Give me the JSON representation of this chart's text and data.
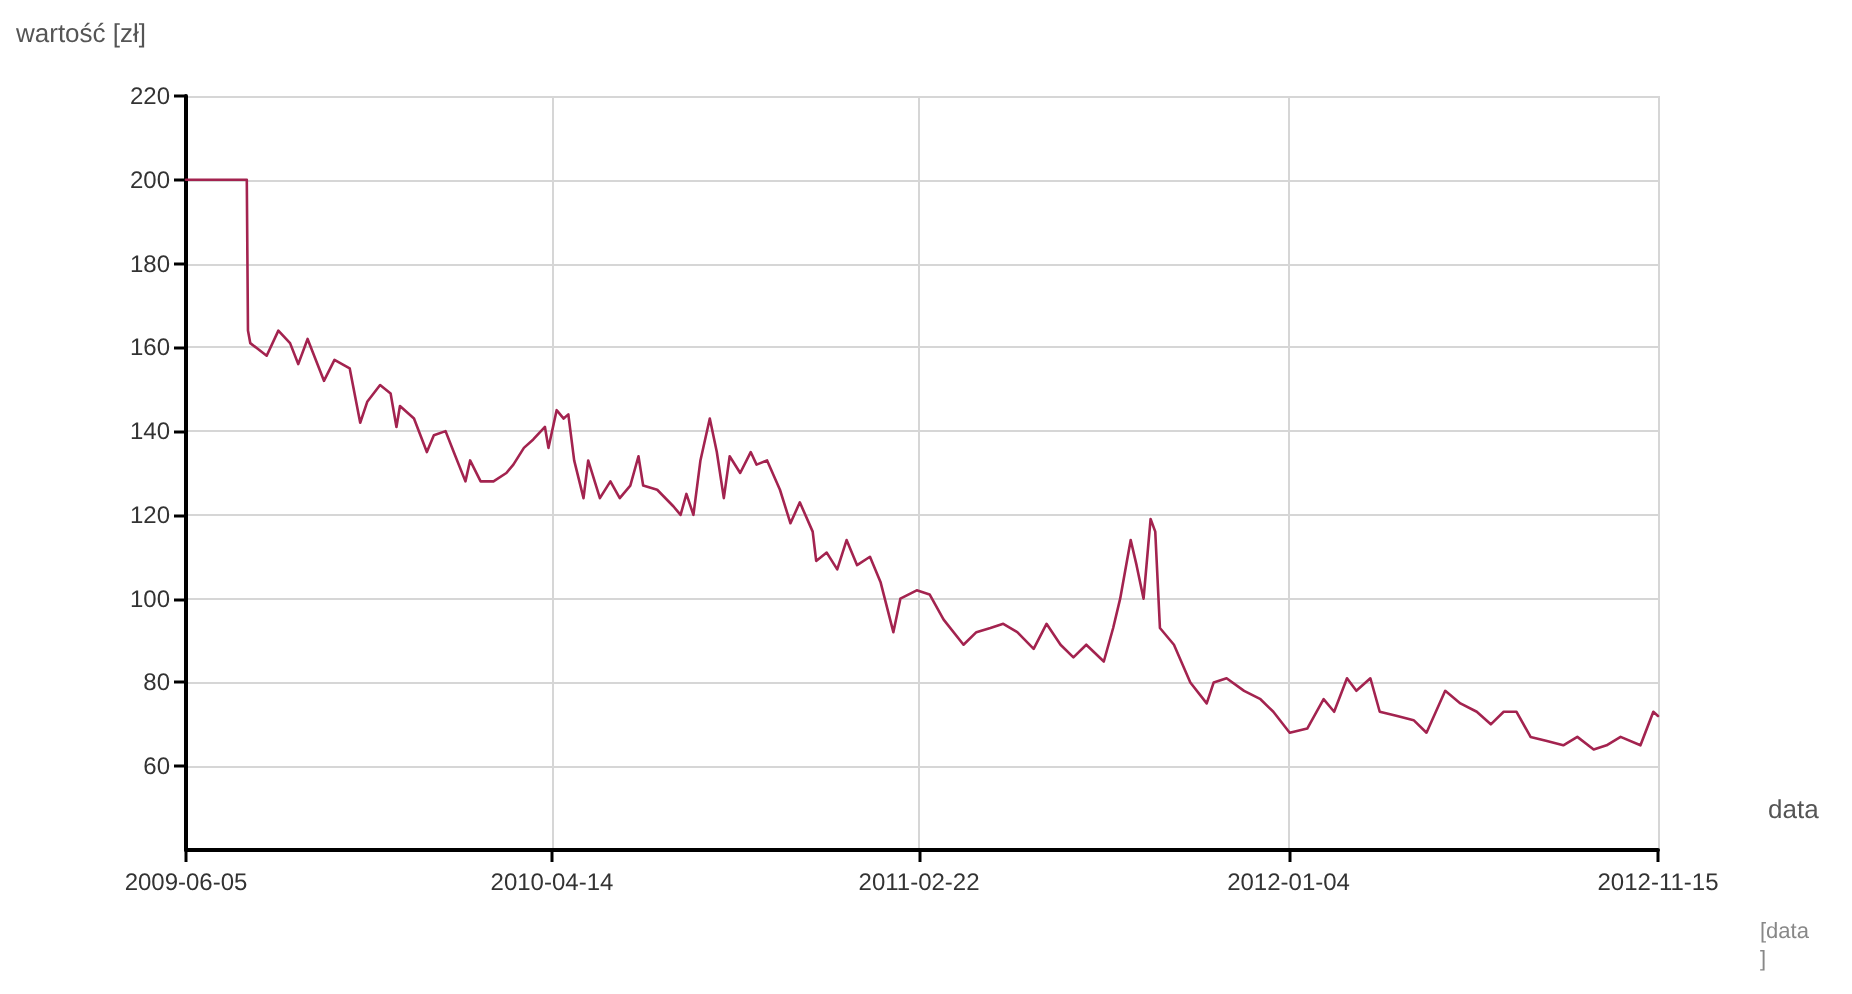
{
  "chart_data": {
    "type": "line",
    "ylabel": "wartość [zł]",
    "xlabel": "data",
    "annotations": [
      "[data]"
    ],
    "xlim": [
      "2009-06-05",
      "2012-11-15"
    ],
    "xticks": [
      "2009-06-05",
      "2010-04-14",
      "2011-02-22",
      "2012-01-04",
      "2012-11-15"
    ],
    "ylim": [
      40,
      220
    ],
    "yticks": [
      60,
      80,
      100,
      120,
      140,
      160,
      180,
      200,
      220
    ],
    "grid": true,
    "marker": "none",
    "line_style": "solid",
    "x": [
      "2009-06-05",
      "2009-07-27",
      "2009-07-28",
      "2009-07-30",
      "2009-08-13",
      "2009-08-23",
      "2009-09-02",
      "2009-09-09",
      "2009-09-17",
      "2009-10-01",
      "2009-10-10",
      "2009-10-23",
      "2009-11-01",
      "2009-11-07",
      "2009-11-18",
      "2009-11-27",
      "2009-12-02",
      "2009-12-05",
      "2009-12-17",
      "2009-12-28",
      "2010-01-03",
      "2010-01-13",
      "2010-01-20",
      "2010-01-30",
      "2010-02-03",
      "2010-02-12",
      "2010-02-23",
      "2010-03-06",
      "2010-03-12",
      "2010-03-21",
      "2010-03-29",
      "2010-04-08",
      "2010-04-11",
      "2010-04-18",
      "2010-04-24",
      "2010-04-28",
      "2010-05-03",
      "2010-05-11",
      "2010-05-15",
      "2010-05-25",
      "2010-06-03",
      "2010-06-11",
      "2010-06-20",
      "2010-06-27",
      "2010-07-01",
      "2010-07-13",
      "2010-07-27",
      "2010-08-02",
      "2010-08-07",
      "2010-08-13",
      "2010-08-19",
      "2010-08-27",
      "2010-09-02",
      "2010-09-08",
      "2010-09-13",
      "2010-09-22",
      "2010-10-01",
      "2010-10-06",
      "2010-10-15",
      "2010-10-26",
      "2010-11-04",
      "2010-11-12",
      "2010-11-23",
      "2010-11-26",
      "2010-12-05",
      "2010-12-14",
      "2010-12-22",
      "2010-12-31",
      "2011-01-11",
      "2011-01-20",
      "2011-01-31",
      "2011-02-06",
      "2011-02-20",
      "2011-03-03",
      "2011-03-15",
      "2011-04-01",
      "2011-04-12",
      "2011-04-24",
      "2011-05-05",
      "2011-05-17",
      "2011-05-31",
      "2011-06-11",
      "2011-06-23",
      "2011-07-04",
      "2011-07-15",
      "2011-07-30",
      "2011-08-07",
      "2011-08-13",
      "2011-08-22",
      "2011-08-27",
      "2011-09-02",
      "2011-09-08",
      "2011-09-12",
      "2011-09-16",
      "2011-09-28",
      "2011-10-12",
      "2011-10-26",
      "2011-11-01",
      "2011-11-12",
      "2011-11-27",
      "2011-12-11",
      "2011-12-22",
      "2012-01-05",
      "2012-01-20",
      "2012-02-03",
      "2012-02-12",
      "2012-02-23",
      "2012-03-02",
      "2012-03-14",
      "2012-03-22",
      "2012-04-06",
      "2012-04-20",
      "2012-05-01",
      "2012-05-17",
      "2012-05-30",
      "2012-06-13",
      "2012-06-25",
      "2012-07-06",
      "2012-07-17",
      "2012-07-29",
      "2012-08-12",
      "2012-08-26",
      "2012-09-07",
      "2012-09-21",
      "2012-10-02",
      "2012-10-14",
      "2012-10-31",
      "2012-11-11",
      "2012-11-15"
    ],
    "series": [
      {
        "color": "#a3234f",
        "values": [
          200,
          200,
          164,
          161,
          158,
          164,
          161,
          156,
          162,
          152,
          157,
          155,
          142,
          147,
          151,
          149,
          141,
          146,
          143,
          135,
          139,
          140,
          135,
          128,
          133,
          128,
          128,
          130,
          132,
          136,
          138,
          141,
          136,
          145,
          143,
          144,
          133,
          124,
          133,
          124,
          128,
          124,
          127,
          134,
          127,
          126,
          122,
          120,
          125,
          120,
          133,
          143,
          135,
          124,
          134,
          130,
          135,
          132,
          133,
          126,
          118,
          123,
          116,
          109,
          111,
          107,
          114,
          108,
          110,
          104,
          92,
          100,
          102,
          101,
          95,
          89,
          92,
          93,
          94,
          92,
          88,
          94,
          89,
          86,
          89,
          85,
          93,
          100,
          114,
          108,
          100,
          119,
          116,
          93,
          89,
          80,
          75,
          80,
          81,
          78,
          76,
          73,
          68,
          69,
          76,
          73,
          81,
          78,
          81,
          73,
          72,
          71,
          68,
          78,
          75,
          73,
          70,
          73,
          73,
          67,
          66,
          65,
          67,
          64,
          65,
          67,
          65,
          73,
          72
        ]
      }
    ]
  }
}
